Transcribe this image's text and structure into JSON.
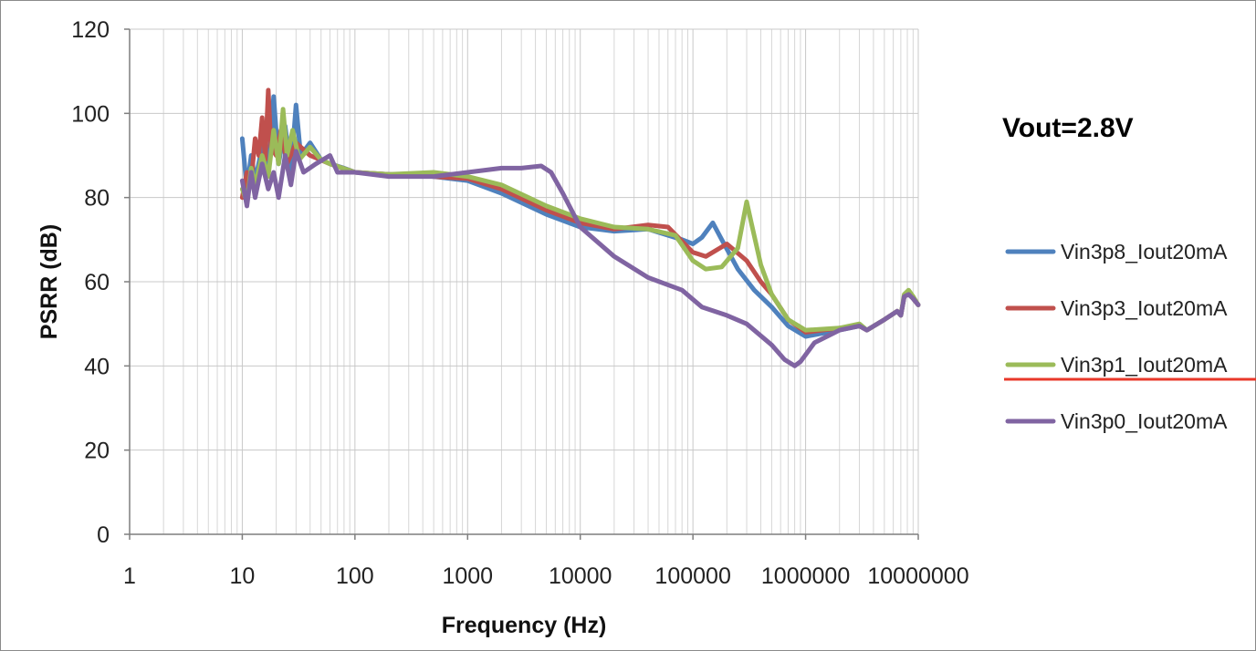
{
  "chart_data": {
    "type": "line",
    "title": "",
    "annotation": "Vout=2.8V",
    "xlabel": "Frequency (Hz)",
    "ylabel": "PSRR (dB)",
    "xscale": "log",
    "xlim": [
      1,
      10000000
    ],
    "ylim": [
      0,
      120
    ],
    "grid": true,
    "legend_position": "right",
    "x_ticks": [
      "1",
      "10",
      "100",
      "1000",
      "10000",
      "100000",
      "1000000",
      "10000000"
    ],
    "y_ticks": [
      "0",
      "20",
      "40",
      "60",
      "80",
      "100",
      "120"
    ],
    "series": [
      {
        "name": "Vin3p8_Iout20mA",
        "color": "#4f81bd",
        "points": [
          [
            10,
            94
          ],
          [
            11,
            82
          ],
          [
            12,
            90
          ],
          [
            13,
            84
          ],
          [
            15,
            92
          ],
          [
            17,
            86
          ],
          [
            19,
            104
          ],
          [
            21,
            88
          ],
          [
            24,
            97
          ],
          [
            27,
            86
          ],
          [
            30,
            102
          ],
          [
            33,
            90
          ],
          [
            40,
            93
          ],
          [
            50,
            89
          ],
          [
            60,
            88
          ],
          [
            80,
            87
          ],
          [
            100,
            86
          ],
          [
            200,
            85.5
          ],
          [
            500,
            85
          ],
          [
            1000,
            84
          ],
          [
            2000,
            81
          ],
          [
            5000,
            76
          ],
          [
            10000,
            73
          ],
          [
            20000,
            72
          ],
          [
            40000,
            72.5
          ],
          [
            80000,
            70
          ],
          [
            100000,
            69
          ],
          [
            120000,
            70.5
          ],
          [
            150000,
            74
          ],
          [
            180000,
            70
          ],
          [
            250000,
            63
          ],
          [
            350000,
            58
          ],
          [
            500000,
            54
          ],
          [
            700000,
            49.5
          ],
          [
            1000000,
            47
          ],
          [
            2000000,
            48.5
          ],
          [
            3000000,
            49.5
          ],
          [
            3500000,
            48.5
          ],
          [
            5000000,
            51
          ],
          [
            6500000,
            53
          ],
          [
            7000000,
            52
          ],
          [
            7500000,
            56.5
          ],
          [
            8200000,
            57.5
          ],
          [
            9000000,
            56
          ],
          [
            10000000,
            54.5
          ]
        ]
      },
      {
        "name": "Vin3p3_Iout20mA",
        "color": "#c0504d",
        "points": [
          [
            10,
            80
          ],
          [
            11,
            86
          ],
          [
            12,
            84
          ],
          [
            13,
            94
          ],
          [
            14,
            90
          ],
          [
            15,
            99
          ],
          [
            16,
            89
          ],
          [
            17,
            105.5
          ],
          [
            18,
            92
          ],
          [
            20,
            90
          ],
          [
            22,
            96
          ],
          [
            25,
            88
          ],
          [
            30,
            93
          ],
          [
            40,
            90
          ],
          [
            60,
            88
          ],
          [
            100,
            86
          ],
          [
            200,
            85.5
          ],
          [
            500,
            85
          ],
          [
            1000,
            84.5
          ],
          [
            2000,
            82
          ],
          [
            5000,
            77
          ],
          [
            10000,
            74
          ],
          [
            20000,
            72.5
          ],
          [
            40000,
            73.5
          ],
          [
            60000,
            73
          ],
          [
            100000,
            67
          ],
          [
            130000,
            66
          ],
          [
            200000,
            69
          ],
          [
            300000,
            65
          ],
          [
            400000,
            60
          ],
          [
            500000,
            57
          ],
          [
            700000,
            51
          ],
          [
            1000000,
            48
          ],
          [
            2000000,
            49
          ],
          [
            3000000,
            49.5
          ],
          [
            3500000,
            48.5
          ],
          [
            5000000,
            51
          ],
          [
            6500000,
            53
          ],
          [
            7000000,
            52
          ],
          [
            7500000,
            56.5
          ],
          [
            8200000,
            57.5
          ],
          [
            9000000,
            56
          ],
          [
            10000000,
            54.5
          ]
        ]
      },
      {
        "name": "Vin3p1_Iout20mA",
        "color": "#9bbb59",
        "points": [
          [
            10,
            82
          ],
          [
            11,
            79
          ],
          [
            12,
            87
          ],
          [
            13,
            83
          ],
          [
            15,
            90
          ],
          [
            17,
            85
          ],
          [
            19,
            96
          ],
          [
            21,
            88
          ],
          [
            23,
            101
          ],
          [
            25,
            90
          ],
          [
            28,
            96
          ],
          [
            32,
            89
          ],
          [
            40,
            92
          ],
          [
            50,
            89
          ],
          [
            60,
            88
          ],
          [
            100,
            86
          ],
          [
            200,
            85.5
          ],
          [
            500,
            86
          ],
          [
            1000,
            85
          ],
          [
            2000,
            83
          ],
          [
            5000,
            78
          ],
          [
            10000,
            75
          ],
          [
            20000,
            73
          ],
          [
            40000,
            72.5
          ],
          [
            70000,
            71
          ],
          [
            100000,
            65
          ],
          [
            130000,
            63
          ],
          [
            180000,
            63.5
          ],
          [
            250000,
            68
          ],
          [
            300000,
            79
          ],
          [
            330000,
            74
          ],
          [
            400000,
            64
          ],
          [
            500000,
            57
          ],
          [
            700000,
            51
          ],
          [
            1000000,
            48.5
          ],
          [
            2000000,
            49
          ],
          [
            3000000,
            50
          ],
          [
            3500000,
            48.5
          ],
          [
            5000000,
            51
          ],
          [
            6500000,
            53
          ],
          [
            7000000,
            52
          ],
          [
            7500000,
            57
          ],
          [
            8200000,
            58
          ],
          [
            9000000,
            56.5
          ],
          [
            10000000,
            54.5
          ]
        ]
      },
      {
        "name": "Vin3p0_Iout20mA",
        "color": "#8064a2",
        "points": [
          [
            10,
            84
          ],
          [
            11,
            78
          ],
          [
            12,
            86
          ],
          [
            13,
            80
          ],
          [
            15,
            88
          ],
          [
            17,
            82
          ],
          [
            19,
            86
          ],
          [
            21,
            80
          ],
          [
            24,
            90
          ],
          [
            27,
            83
          ],
          [
            30,
            91
          ],
          [
            35,
            86
          ],
          [
            45,
            88
          ],
          [
            60,
            90
          ],
          [
            70,
            86
          ],
          [
            100,
            86
          ],
          [
            200,
            85
          ],
          [
            500,
            85
          ],
          [
            1000,
            86
          ],
          [
            2000,
            87
          ],
          [
            3000,
            87
          ],
          [
            4500,
            87.5
          ],
          [
            5500,
            86
          ],
          [
            7000,
            81
          ],
          [
            10000,
            73
          ],
          [
            20000,
            66
          ],
          [
            40000,
            61
          ],
          [
            80000,
            58
          ],
          [
            120000,
            54
          ],
          [
            200000,
            52
          ],
          [
            300000,
            50
          ],
          [
            500000,
            45
          ],
          [
            650000,
            41.5
          ],
          [
            800000,
            40
          ],
          [
            900000,
            41
          ],
          [
            1200000,
            45.5
          ],
          [
            2000000,
            48.5
          ],
          [
            3000000,
            49.5
          ],
          [
            3500000,
            48.5
          ],
          [
            5000000,
            51
          ],
          [
            6500000,
            53
          ],
          [
            7000000,
            52
          ],
          [
            7500000,
            56.5
          ],
          [
            8200000,
            57
          ],
          [
            9000000,
            56
          ],
          [
            10000000,
            54.5
          ]
        ]
      }
    ]
  }
}
